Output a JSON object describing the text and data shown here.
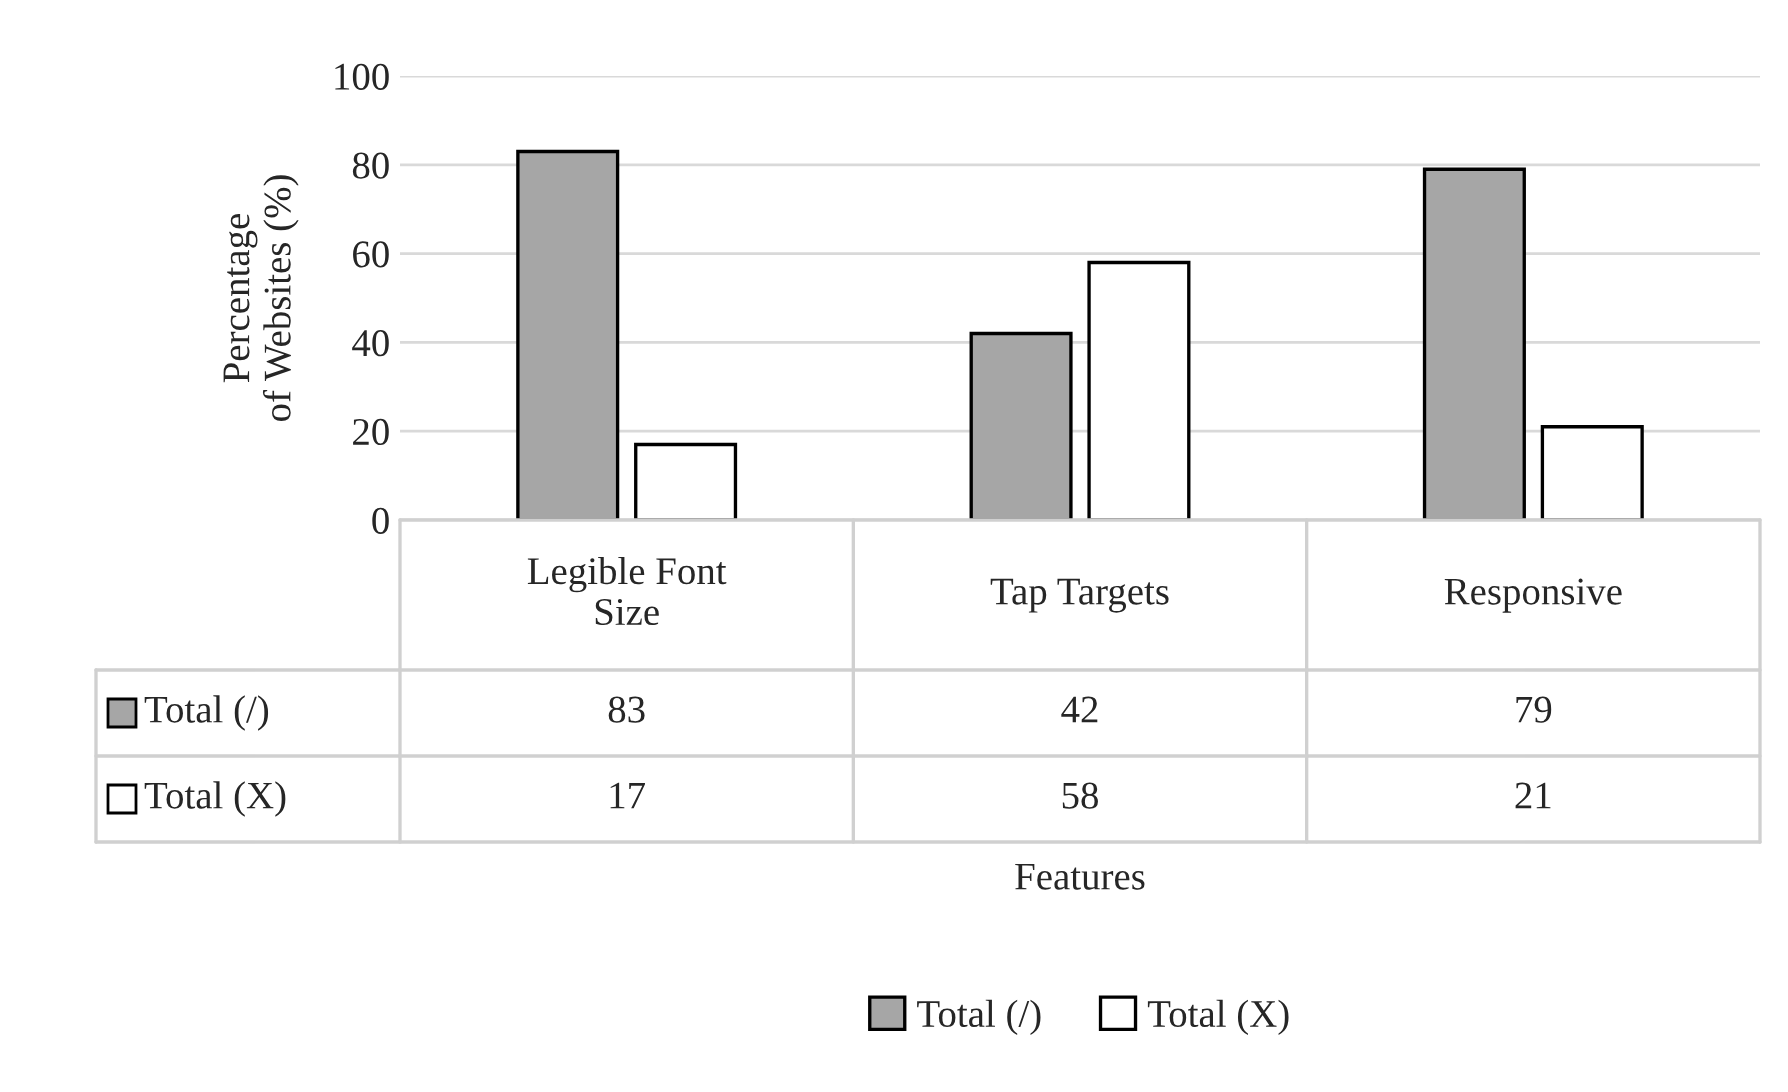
{
  "chart_data": {
    "type": "bar",
    "annotations": [
      "Features"
    ],
    "ylabel": "Percentage\nof Websites (%)",
    "categories": [
      "Legible Font\nSize",
      "Tap Targets",
      "Responsive"
    ],
    "series": [
      {
        "name": "Total (/)",
        "color": "#a6a6a6",
        "values": [
          83,
          42,
          79
        ]
      },
      {
        "name": "Total (X)",
        "color": "#ffffff",
        "values": [
          17,
          58,
          21
        ]
      }
    ],
    "ylim": [
      0,
      100
    ],
    "yticks": [
      0,
      20,
      40,
      60,
      80,
      100
    ],
    "grid": "y",
    "legend": "bottom",
    "data_labels": true
  }
}
